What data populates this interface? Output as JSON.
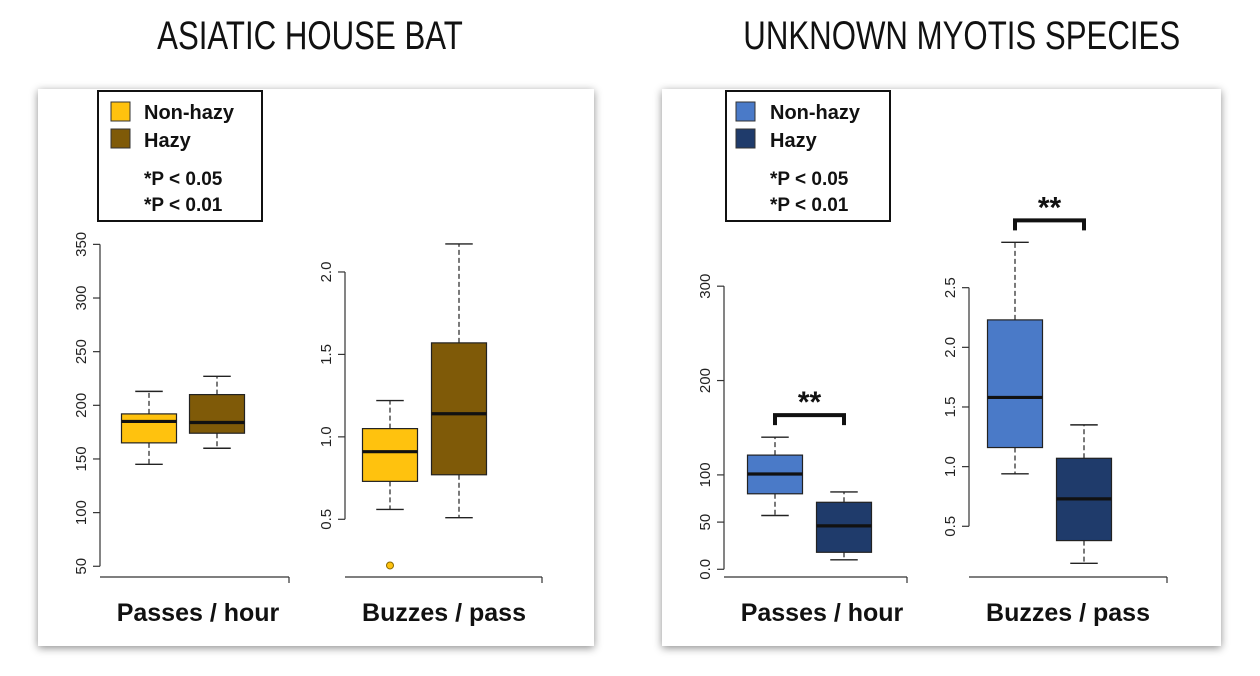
{
  "panels": [
    {
      "title": "ASIATIC HOUSE BAT",
      "legend": {
        "entries": [
          {
            "label": "Non-hazy",
            "color": "#FFC20E"
          },
          {
            "label": "Hazy",
            "color": "#7F5A08"
          }
        ],
        "notes": [
          "*P < 0.05",
          "*P < 0.01"
        ]
      }
    },
    {
      "title": "UNKNOWN MYOTIS SPECIES",
      "legend": {
        "entries": [
          {
            "label": "Non-hazy",
            "color": "#4A7AC8"
          },
          {
            "label": "Hazy",
            "color": "#1F3B6B"
          }
        ],
        "notes": [
          "*P < 0.05",
          "*P < 0.01"
        ]
      }
    }
  ],
  "chart_data": [
    {
      "type": "box",
      "panel": "ASIATIC HOUSE BAT",
      "xlabel": "Passes / hour",
      "yticks": [
        50,
        100,
        150,
        200,
        250,
        300,
        350
      ],
      "ylim": [
        40,
        355
      ],
      "significance": "",
      "boxes": [
        {
          "group": "Non-hazy",
          "color": "#FFC20E",
          "min": 145,
          "q1": 165,
          "median": 185,
          "q3": 192,
          "max": 213,
          "outliers": []
        },
        {
          "group": "Hazy",
          "color": "#7F5A08",
          "min": 160,
          "q1": 174,
          "median": 184,
          "q3": 210,
          "max": 227,
          "outliers": []
        }
      ]
    },
    {
      "type": "box",
      "panel": "ASIATIC HOUSE BAT",
      "xlabel": "Buzzes / pass",
      "yticks": [
        0.5,
        1.0,
        1.5,
        2.0
      ],
      "ylim": [
        0.15,
        2.2
      ],
      "significance": "",
      "boxes": [
        {
          "group": "Non-hazy",
          "color": "#FFC20E",
          "min": 0.56,
          "q1": 0.73,
          "median": 0.91,
          "q3": 1.05,
          "max": 1.22,
          "outliers": [
            0.22
          ]
        },
        {
          "group": "Hazy",
          "color": "#7F5A08",
          "min": 0.51,
          "q1": 0.77,
          "median": 1.14,
          "q3": 1.57,
          "max": 2.17,
          "outliers": []
        }
      ]
    },
    {
      "type": "box",
      "panel": "UNKNOWN MYOTIS SPECIES",
      "xlabel": "Passes / hour",
      "yticks": [
        0,
        50,
        100,
        200,
        300
      ],
      "ylim": [
        -5,
        350
      ],
      "significance": "**",
      "boxes": [
        {
          "group": "Non-hazy",
          "color": "#4A7AC8",
          "min": 57,
          "q1": 80,
          "median": 101,
          "q3": 121,
          "max": 140,
          "outliers": []
        },
        {
          "group": "Hazy",
          "color": "#1F3B6B",
          "min": 10,
          "q1": 18,
          "median": 46,
          "q3": 71,
          "max": 82,
          "outliers": []
        }
      ]
    },
    {
      "type": "box",
      "panel": "UNKNOWN MYOTIS SPECIES",
      "xlabel": "Buzzes / pass",
      "yticks": [
        0.5,
        1.0,
        1.5,
        2.0,
        2.5
      ],
      "ylim": [
        0.1,
        2.95
      ],
      "significance": "**",
      "boxes": [
        {
          "group": "Non-hazy",
          "color": "#4A7AC8",
          "min": 0.94,
          "q1": 1.16,
          "median": 1.58,
          "q3": 2.23,
          "max": 2.88,
          "outliers": []
        },
        {
          "group": "Hazy",
          "color": "#1F3B6B",
          "min": 0.19,
          "q1": 0.38,
          "median": 0.73,
          "q3": 1.07,
          "max": 1.35,
          "outliers": []
        }
      ]
    }
  ]
}
